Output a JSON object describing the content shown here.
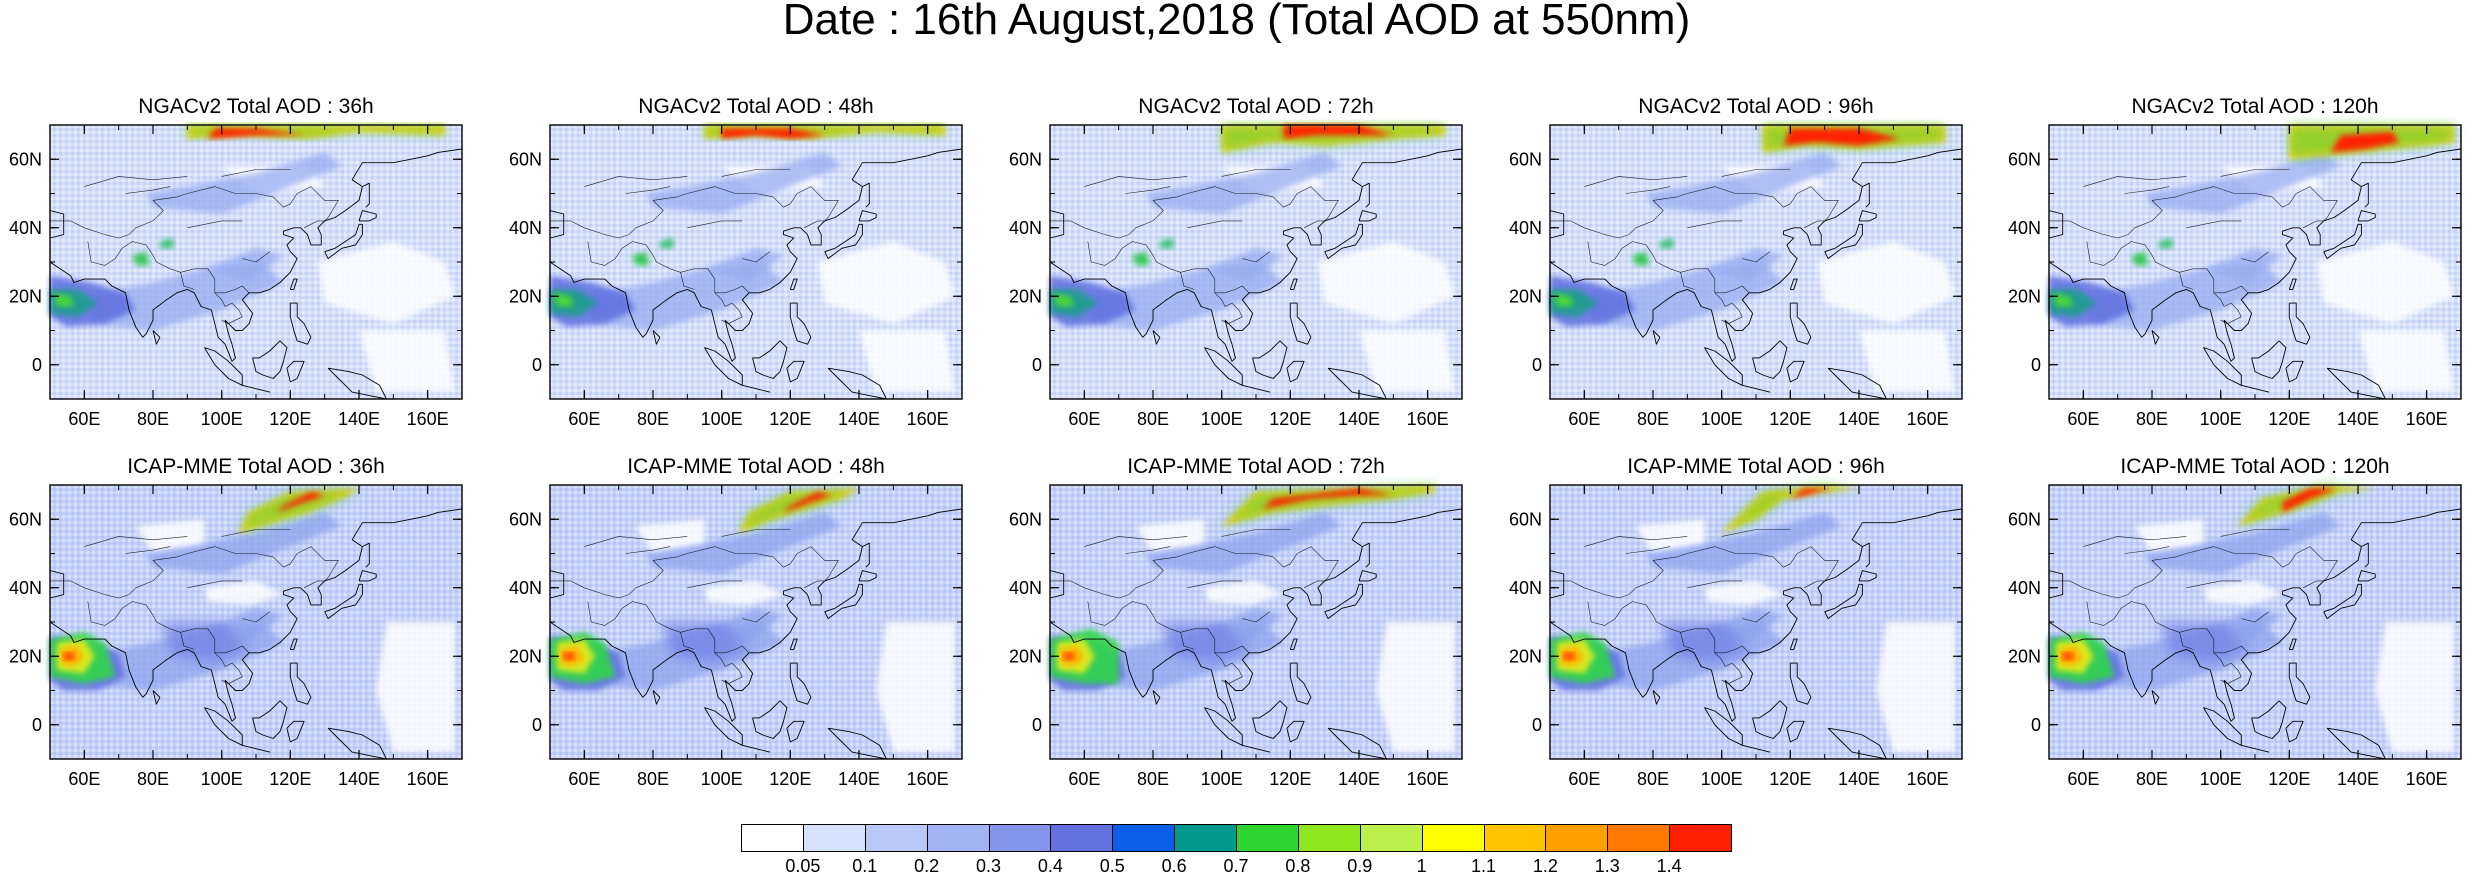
{
  "title": "Date : 16th August,2018 (Total AOD at 550nm)",
  "x_tick_labels": [
    "60E",
    "80E",
    "100E",
    "120E",
    "140E",
    "160E"
  ],
  "y_tick_labels": [
    "60N",
    "40N",
    "20N",
    "0"
  ],
  "map_domain": {
    "lon_range": [
      50,
      170
    ],
    "lat_range": [
      -10,
      70
    ],
    "x_ticks": [
      60,
      80,
      100,
      120,
      140,
      160
    ],
    "y_ticks": [
      60,
      40,
      20,
      0
    ]
  },
  "panels": [
    {
      "title": "NGACv2 Total AOD : 36h",
      "model": "NGACv2",
      "lead_time": "36h"
    },
    {
      "title": "NGACv2 Total AOD : 48h",
      "model": "NGACv2",
      "lead_time": "48h"
    },
    {
      "title": "NGACv2 Total AOD : 72h",
      "model": "NGACv2",
      "lead_time": "72h"
    },
    {
      "title": "NGACv2 Total AOD : 96h",
      "model": "NGACv2",
      "lead_time": "96h"
    },
    {
      "title": "NGACv2 Total AOD : 120h",
      "model": "NGACv2",
      "lead_time": "120h"
    },
    {
      "title": "ICAP-MME Total AOD : 36h",
      "model": "ICAP-MME",
      "lead_time": "36h"
    },
    {
      "title": "ICAP-MME Total AOD : 48h",
      "model": "ICAP-MME",
      "lead_time": "48h"
    },
    {
      "title": "ICAP-MME Total AOD : 72h",
      "model": "ICAP-MME",
      "lead_time": "72h"
    },
    {
      "title": "ICAP-MME Total AOD : 96h",
      "model": "ICAP-MME",
      "lead_time": "96h"
    },
    {
      "title": "ICAP-MME Total AOD : 120h",
      "model": "ICAP-MME",
      "lead_time": "120h"
    }
  ],
  "colorbar": {
    "labels": [
      "0.05",
      "0.1",
      "0.2",
      "0.3",
      "0.4",
      "0.5",
      "0.6",
      "0.7",
      "0.8",
      "0.9",
      "1",
      "1.1",
      "1.2",
      "1.3",
      "1.4"
    ],
    "colors": [
      "#ffffff",
      "#d6e1fb",
      "#b9c8f5",
      "#a1b3f2",
      "#8496ec",
      "#6370e0",
      "#0a5fe8",
      "#009a8e",
      "#2fd62f",
      "#8ee61e",
      "#bdf04a",
      "#ffff00",
      "#ffc400",
      "#ffa000",
      "#ff7800",
      "#ff2000"
    ]
  }
}
